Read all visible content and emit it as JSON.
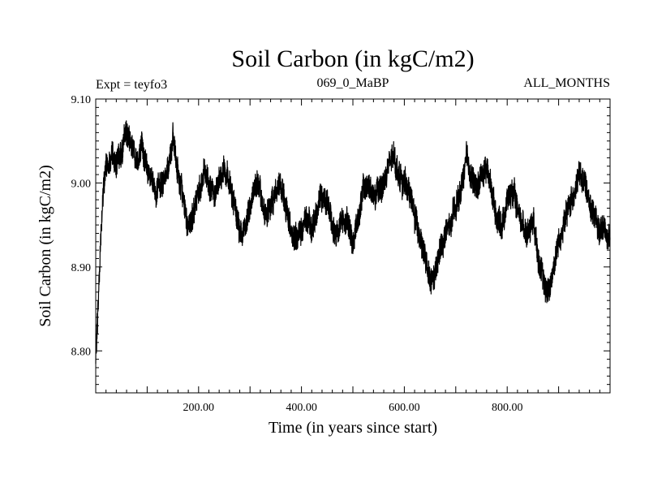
{
  "chart_data": {
    "type": "line",
    "title": "Soil Carbon (in kgC/m2)",
    "subtitle_left": "Expt = teyfo3",
    "subtitle_center": "069_0_MaBP",
    "subtitle_right": "ALL_MONTHS",
    "xlabel": "Time (in years since start)",
    "ylabel": "Soil Carbon (in kgC/m2)",
    "xlim": [
      0,
      1000
    ],
    "ylim": [
      8.75,
      9.1
    ],
    "x_ticks": [
      200,
      400,
      600,
      800
    ],
    "x_tick_labels": [
      "200.00",
      "400.00",
      "600.00",
      "800.00"
    ],
    "y_ticks": [
      8.8,
      8.9,
      9.0,
      9.1
    ],
    "y_tick_labels": [
      "8.80",
      "8.90",
      "9.00",
      "9.10"
    ],
    "series": [
      {
        "name": "Soil Carbon",
        "color": "#000000",
        "x": [
          0,
          5,
          10,
          15,
          20,
          30,
          40,
          50,
          60,
          70,
          80,
          90,
          100,
          110,
          120,
          130,
          140,
          150,
          160,
          170,
          180,
          190,
          200,
          210,
          220,
          230,
          240,
          250,
          260,
          270,
          280,
          290,
          300,
          310,
          320,
          330,
          340,
          350,
          360,
          370,
          380,
          390,
          400,
          410,
          420,
          430,
          440,
          450,
          460,
          470,
          480,
          490,
          500,
          510,
          520,
          530,
          540,
          550,
          560,
          570,
          580,
          590,
          600,
          610,
          620,
          630,
          640,
          650,
          660,
          670,
          680,
          690,
          700,
          710,
          720,
          730,
          740,
          750,
          760,
          770,
          780,
          790,
          800,
          810,
          820,
          830,
          840,
          850,
          860,
          870,
          880,
          890,
          900,
          910,
          920,
          930,
          940,
          950,
          960,
          970,
          980,
          990,
          1000
        ],
        "mean": [
          8.79,
          8.86,
          8.94,
          8.99,
          9.02,
          9.03,
          9.02,
          9.04,
          9.06,
          9.05,
          9.03,
          9.04,
          9.02,
          9.0,
          8.99,
          9.0,
          9.02,
          9.05,
          9.01,
          8.98,
          8.95,
          8.96,
          8.99,
          9.01,
          9.0,
          8.98,
          9.0,
          9.02,
          9.0,
          8.97,
          8.94,
          8.95,
          8.97,
          9.0,
          8.99,
          8.96,
          8.97,
          8.99,
          9.0,
          8.97,
          8.94,
          8.93,
          8.95,
          8.96,
          8.94,
          8.97,
          8.99,
          8.98,
          8.95,
          8.94,
          8.96,
          8.95,
          8.93,
          8.96,
          8.99,
          9.0,
          8.98,
          8.99,
          9.0,
          9.02,
          9.03,
          9.01,
          9.0,
          8.99,
          8.96,
          8.94,
          8.91,
          8.88,
          8.89,
          8.92,
          8.94,
          8.95,
          8.97,
          8.99,
          9.03,
          9.01,
          8.99,
          9.01,
          9.02,
          8.99,
          8.96,
          8.95,
          8.98,
          8.99,
          8.97,
          8.95,
          8.94,
          8.96,
          8.92,
          8.88,
          8.87,
          8.9,
          8.93,
          8.95,
          8.97,
          8.99,
          9.01,
          9.0,
          8.98,
          8.96,
          8.94,
          8.95,
          8.93
        ],
        "band": 0.015
      }
    ]
  }
}
